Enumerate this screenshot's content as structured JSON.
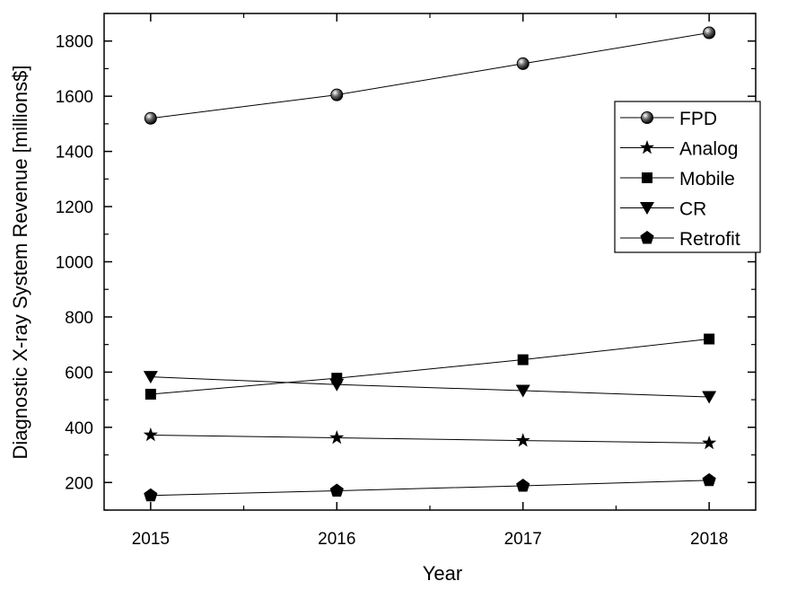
{
  "chart_data": {
    "type": "line",
    "title": "",
    "xlabel": "Year",
    "ylabel": "Diagnostic X-ray System Revenue [millions$]",
    "x": [
      2015,
      2016,
      2017,
      2018
    ],
    "xlim": [
      2014.75,
      2018.25
    ],
    "ylim": [
      100,
      1900
    ],
    "x_ticks": [
      "2015",
      "2016",
      "2017",
      "2018"
    ],
    "y_ticks": [
      200,
      400,
      600,
      800,
      1000,
      1200,
      1400,
      1600,
      1800
    ],
    "grid": false,
    "legend_position": "top-right",
    "series": [
      {
        "name": "FPD",
        "marker": "sphere",
        "values": [
          1520,
          1605,
          1718,
          1830
        ]
      },
      {
        "name": "Analog",
        "marker": "star",
        "values": [
          372,
          362,
          352,
          343
        ]
      },
      {
        "name": "Mobile",
        "marker": "square",
        "values": [
          520,
          578,
          645,
          720
        ]
      },
      {
        "name": "CR",
        "marker": "triangle-down",
        "values": [
          583,
          555,
          533,
          510
        ]
      },
      {
        "name": "Retrofit",
        "marker": "pentagon",
        "values": [
          153,
          170,
          188,
          208
        ]
      }
    ]
  }
}
